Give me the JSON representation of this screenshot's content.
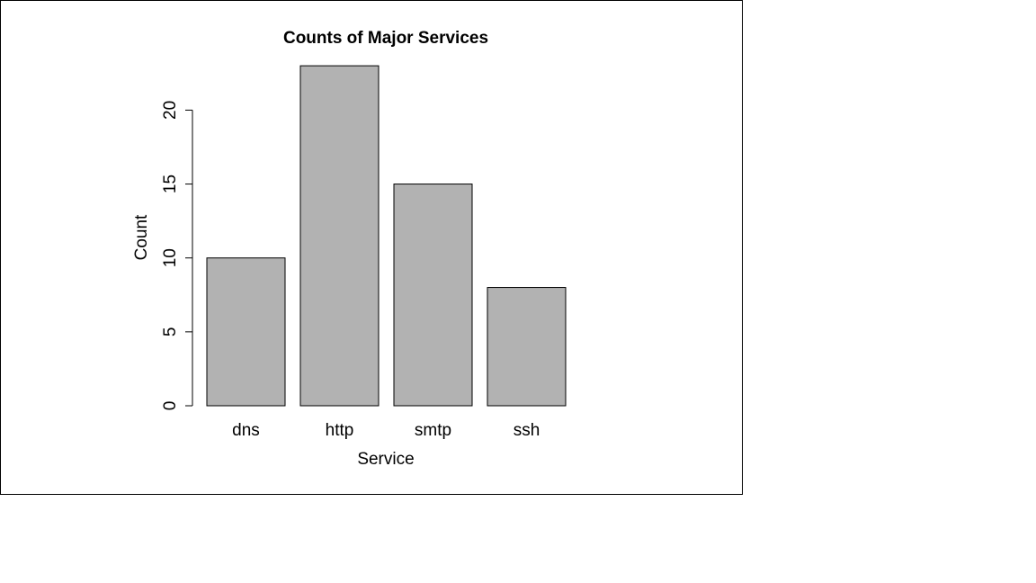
{
  "chart_data": {
    "type": "bar",
    "title": "Counts of Major Services",
    "xlabel": "Service",
    "ylabel": "Count",
    "categories": [
      "dns",
      "http",
      "smtp",
      "ssh"
    ],
    "values": [
      10,
      23,
      15,
      8
    ],
    "ylim": [
      0,
      23
    ],
    "yticks": [
      "0",
      "5",
      "10",
      "15",
      "20"
    ],
    "bar_color": "#b2b2b2",
    "grid": false,
    "legend": "none"
  }
}
